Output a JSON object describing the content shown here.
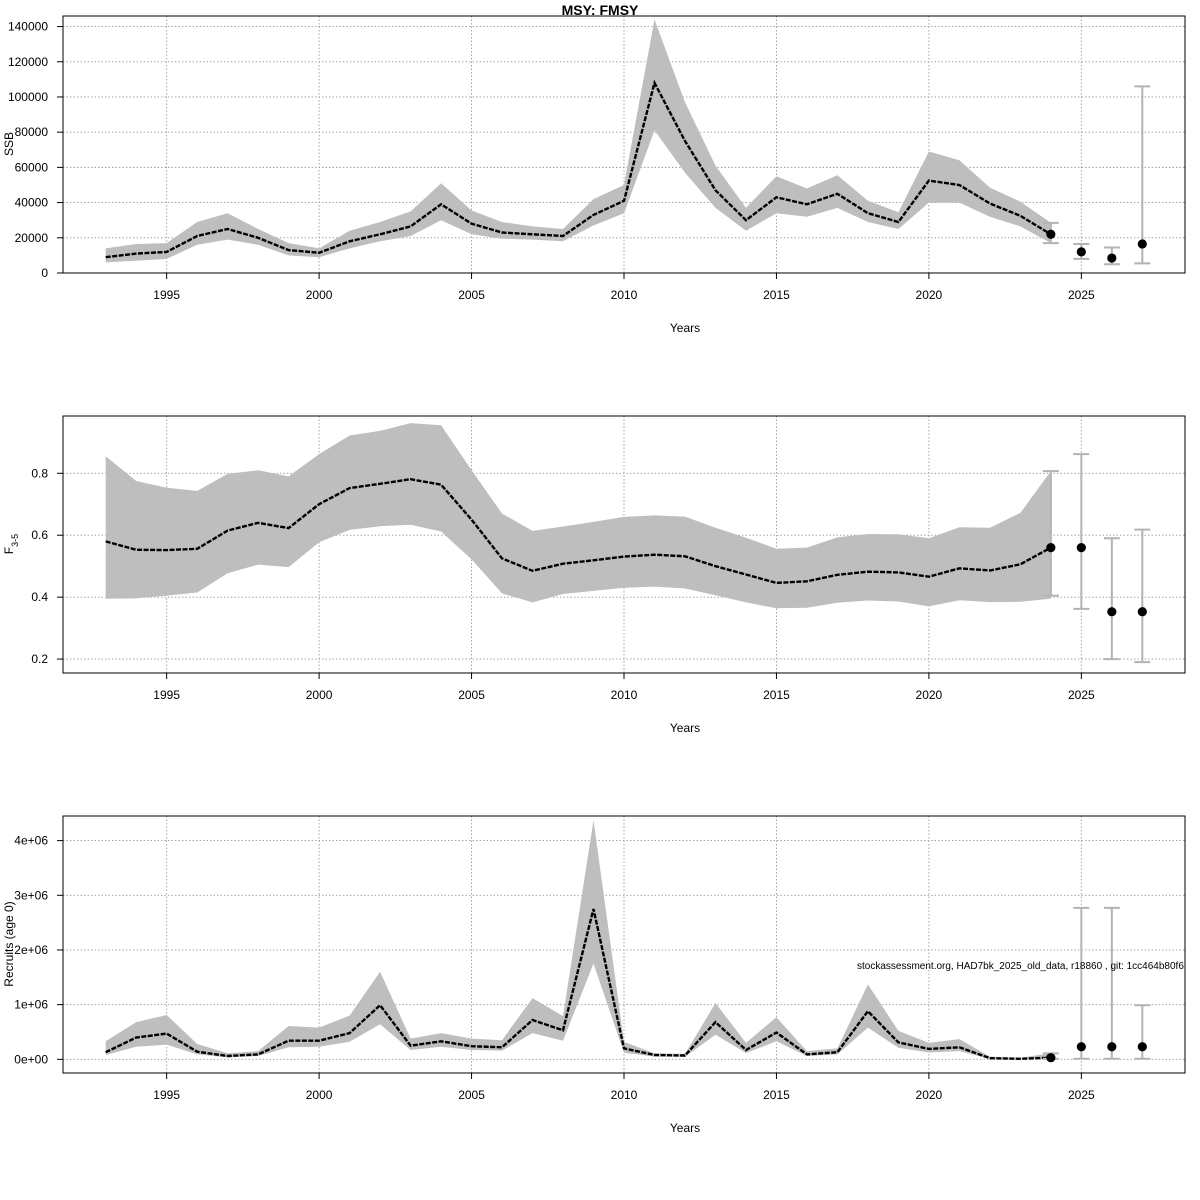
{
  "title": "MSY: FMSY",
  "credit": "stockassessment.org, HAD7bk_2025_old_data, r18860 , git: 1cc464b80f6",
  "colors": {
    "band": "#bebebe",
    "line": "#000000",
    "grid": "#9a9a9a",
    "errorbar": "#b3b3b3",
    "point": "#000000"
  },
  "chart_data": [
    {
      "type": "line",
      "ylabel": "SSB",
      "xlabel": "Years",
      "xlim": [
        1991.6,
        2028.4
      ],
      "ylim": [
        0,
        146000
      ],
      "xticks": [
        1995,
        2000,
        2005,
        2010,
        2015,
        2020,
        2025
      ],
      "yticks": [
        0,
        20000,
        40000,
        60000,
        80000,
        100000,
        120000,
        140000
      ],
      "ytick_labels": [
        "0",
        "20000",
        "40000",
        "60000",
        "80000",
        "100000",
        "120000",
        "140000"
      ],
      "grid": true,
      "series": [
        {
          "x": [
            1993,
            1994,
            1995,
            1996,
            1997,
            1998,
            1999,
            2000,
            2001,
            2002,
            2003,
            2004,
            2005,
            2006,
            2007,
            2008,
            2009,
            2010,
            2011,
            2012,
            2013,
            2014,
            2015,
            2016,
            2017,
            2018,
            2019,
            2020,
            2021,
            2022,
            2023,
            2024
          ],
          "values": [
            9000,
            11000,
            12000,
            21000,
            25000,
            20000,
            13000,
            11500,
            18000,
            22000,
            26500,
            39000,
            28000,
            23000,
            22000,
            21000,
            33000,
            41000,
            108000,
            75000,
            47000,
            30000,
            43000,
            39000,
            45000,
            34000,
            29000,
            52500,
            50000,
            39500,
            32500,
            22000
          ],
          "lower": [
            6000,
            7000,
            8000,
            16000,
            19000,
            16000,
            10000,
            9000,
            14000,
            18000,
            21000,
            30000,
            22000,
            19500,
            19000,
            18000,
            27000,
            34000,
            81000,
            57000,
            37000,
            24000,
            34000,
            32000,
            37000,
            29000,
            25000,
            40000,
            40000,
            32000,
            26500,
            17000
          ],
          "upper": [
            14000,
            16500,
            17000,
            29000,
            34000,
            25000,
            17000,
            14000,
            24000,
            29000,
            35000,
            51000,
            35500,
            29000,
            26500,
            25000,
            42000,
            50000,
            144000,
            97000,
            61000,
            37000,
            55000,
            48000,
            55500,
            41000,
            34500,
            69000,
            64000,
            48500,
            40500,
            28500
          ]
        }
      ],
      "forecast": [
        {
          "x": 2024,
          "value": 22000,
          "lower": 17000,
          "upper": 28500
        },
        {
          "x": 2025,
          "value": 12000,
          "lower": 8000,
          "upper": 16500
        },
        {
          "x": 2026,
          "value": 8500,
          "lower": 5000,
          "upper": 14500
        },
        {
          "x": 2027,
          "value": 16500,
          "lower": 5500,
          "upper": 106000
        }
      ]
    },
    {
      "type": "line",
      "ylabel": "F",
      "ylabel_sub": "3-5",
      "xlabel": "Years",
      "xlim": [
        1991.6,
        2028.4
      ],
      "ylim": [
        0.155,
        0.985
      ],
      "xticks": [
        1995,
        2000,
        2005,
        2010,
        2015,
        2020,
        2025
      ],
      "yticks": [
        0.2,
        0.4,
        0.6,
        0.8
      ],
      "ytick_labels": [
        "0.2",
        "0.4",
        "0.6",
        "0.8"
      ],
      "grid": true,
      "series": [
        {
          "x": [
            1993,
            1994,
            1995,
            1996,
            1997,
            1998,
            1999,
            2000,
            2001,
            2002,
            2003,
            2004,
            2005,
            2006,
            2007,
            2008,
            2009,
            2010,
            2011,
            2012,
            2013,
            2014,
            2015,
            2016,
            2017,
            2018,
            2019,
            2020,
            2021,
            2022,
            2023,
            2024
          ],
          "values": [
            0.58,
            0.553,
            0.552,
            0.556,
            0.615,
            0.64,
            0.623,
            0.7,
            0.752,
            0.766,
            0.781,
            0.763,
            0.65,
            0.525,
            0.485,
            0.508,
            0.519,
            0.531,
            0.537,
            0.532,
            0.5,
            0.473,
            0.446,
            0.451,
            0.472,
            0.482,
            0.48,
            0.466,
            0.493,
            0.486,
            0.506,
            0.56
          ],
          "lower": [
            0.395,
            0.396,
            0.405,
            0.415,
            0.477,
            0.505,
            0.497,
            0.577,
            0.617,
            0.629,
            0.634,
            0.612,
            0.522,
            0.412,
            0.383,
            0.41,
            0.42,
            0.43,
            0.434,
            0.428,
            0.406,
            0.383,
            0.364,
            0.366,
            0.382,
            0.389,
            0.386,
            0.37,
            0.39,
            0.384,
            0.385,
            0.395
          ],
          "upper": [
            0.855,
            0.775,
            0.753,
            0.743,
            0.798,
            0.81,
            0.79,
            0.862,
            0.922,
            0.937,
            0.962,
            0.955,
            0.81,
            0.67,
            0.614,
            0.628,
            0.643,
            0.659,
            0.664,
            0.66,
            0.624,
            0.592,
            0.556,
            0.56,
            0.593,
            0.604,
            0.603,
            0.59,
            0.626,
            0.624,
            0.672,
            0.807
          ]
        }
      ],
      "forecast": [
        {
          "x": 2024,
          "value": 0.56,
          "lower": 0.405,
          "upper": 0.807
        },
        {
          "x": 2025,
          "value": 0.56,
          "lower": 0.362,
          "upper": 0.862
        },
        {
          "x": 2026,
          "value": 0.353,
          "lower": 0.2,
          "upper": 0.59
        },
        {
          "x": 2027,
          "value": 0.353,
          "lower": 0.19,
          "upper": 0.618
        }
      ]
    },
    {
      "type": "line",
      "ylabel": "Recruits (age 0)",
      "xlabel": "Years",
      "xlim": [
        1991.6,
        2028.4
      ],
      "ylim": [
        -250000,
        4450000
      ],
      "xticks": [
        1995,
        2000,
        2005,
        2010,
        2015,
        2020,
        2025
      ],
      "yticks": [
        0,
        1000000,
        2000000,
        3000000,
        4000000
      ],
      "ytick_labels": [
        "0e+00",
        "1e+06",
        "2e+06",
        "3e+06",
        "4e+06"
      ],
      "grid": true,
      "series": [
        {
          "x": [
            1993,
            1994,
            1995,
            1996,
            1997,
            1998,
            1999,
            2000,
            2001,
            2002,
            2003,
            2004,
            2005,
            2006,
            2007,
            2008,
            2009,
            2010,
            2011,
            2012,
            2013,
            2014,
            2015,
            2016,
            2017,
            2018,
            2019,
            2020,
            2021,
            2022,
            2023,
            2024
          ],
          "values": [
            130000,
            400000,
            470000,
            140000,
            60000,
            90000,
            340000,
            340000,
            480000,
            990000,
            250000,
            330000,
            240000,
            220000,
            720000,
            530000,
            2750000,
            200000,
            80000,
            70000,
            680000,
            170000,
            490000,
            90000,
            130000,
            880000,
            310000,
            190000,
            220000,
            20000,
            10000,
            30000
          ],
          "lower": [
            80000,
            230000,
            270000,
            90000,
            35000,
            60000,
            220000,
            230000,
            320000,
            640000,
            170000,
            230000,
            170000,
            160000,
            480000,
            340000,
            1750000,
            120000,
            50000,
            45000,
            450000,
            115000,
            330000,
            60000,
            90000,
            580000,
            210000,
            125000,
            150000,
            8000,
            4000,
            10000
          ],
          "upper": [
            330000,
            680000,
            810000,
            280000,
            110000,
            150000,
            610000,
            580000,
            800000,
            1600000,
            380000,
            480000,
            380000,
            350000,
            1120000,
            790000,
            4370000,
            320000,
            110000,
            100000,
            1030000,
            300000,
            770000,
            150000,
            200000,
            1370000,
            520000,
            300000,
            370000,
            50000,
            30000,
            110000
          ]
        }
      ],
      "forecast": [
        {
          "x": 2024,
          "value": 30000,
          "lower": 10000,
          "upper": 110000
        },
        {
          "x": 2025,
          "value": 230000,
          "lower": 10000,
          "upper": 2770000
        },
        {
          "x": 2026,
          "value": 230000,
          "lower": 10000,
          "upper": 2770000
        },
        {
          "x": 2027,
          "value": 230000,
          "lower": 10000,
          "upper": 990000
        }
      ]
    }
  ]
}
